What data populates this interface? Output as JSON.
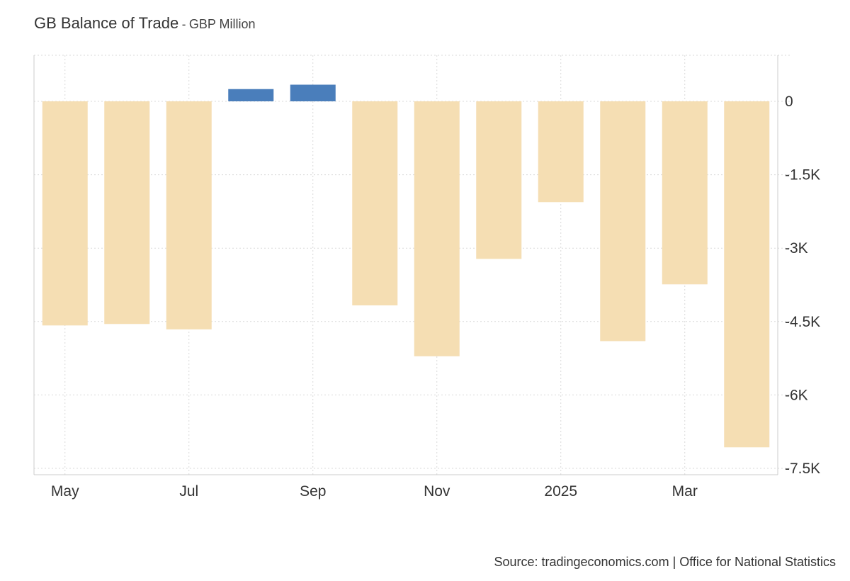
{
  "header": {
    "title": "GB Balance of Trade",
    "separator": "-",
    "subtitle": "GBP Million"
  },
  "footer": {
    "source": "Source: tradingeconomics.com | Office for National Statistics"
  },
  "chart_data": {
    "type": "bar",
    "title": "GB Balance of Trade",
    "subtitle": "GBP Million",
    "xlabel": "",
    "ylabel": "",
    "categories": [
      "2024-05",
      "2024-06",
      "2024-07",
      "2024-08",
      "2024-09",
      "2024-10",
      "2024-11",
      "2024-12",
      "2025-01",
      "2025-02",
      "2025-03",
      "2025-04"
    ],
    "x_tick_labels": [
      "May",
      "Jul",
      "Sep",
      "Nov",
      "2025",
      "Mar"
    ],
    "x_tick_categories": [
      "2024-05",
      "2024-07",
      "2024-09",
      "2024-11",
      "2025-01",
      "2025-03"
    ],
    "values": [
      -4580,
      -4550,
      -4660,
      250,
      340,
      -4170,
      -5210,
      -3220,
      -2060,
      -4900,
      -3740,
      -7070
    ],
    "y_ticks": [
      0,
      -1500,
      -3000,
      -4500,
      -6000,
      -7500
    ],
    "y_tick_labels": [
      "0",
      "-1.5K",
      "-3K",
      "-4.5K",
      "-6K",
      "-7.5K"
    ],
    "ylim": [
      -7500,
      900
    ],
    "y_axis_position": "right",
    "grid": true,
    "legend": "none",
    "colors": {
      "positive": "#4a7ebb",
      "negative": "#f5deb3",
      "grid": "#d9d9d9",
      "axis": "#cccccc",
      "text": "#333333"
    }
  }
}
